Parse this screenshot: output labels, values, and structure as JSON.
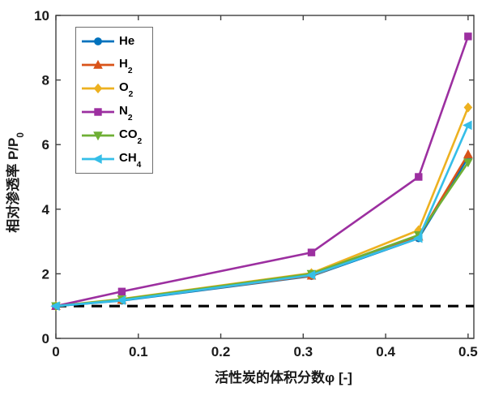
{
  "figure": {
    "background": "#ffffff",
    "axis_color": "#3f3f3f",
    "tick_label_color": "#1a1a1a"
  },
  "chart_data": {
    "type": "line",
    "x": [
      0,
      0.08,
      0.31,
      0.44,
      0.5
    ],
    "series": [
      {
        "name": "He",
        "sub": "",
        "color": "#0072BD",
        "marker": "circle",
        "values": [
          1.0,
          1.17,
          1.93,
          3.1,
          5.6
        ]
      },
      {
        "name": "H",
        "sub": "2",
        "color": "#D95319",
        "marker": "triangle-up",
        "values": [
          1.0,
          1.19,
          1.94,
          3.15,
          5.7
        ]
      },
      {
        "name": "O",
        "sub": "2",
        "color": "#EDB120",
        "marker": "diamond",
        "values": [
          1.0,
          1.22,
          2.02,
          3.35,
          7.15
        ]
      },
      {
        "name": "N",
        "sub": "2",
        "color": "#9C2FA0",
        "marker": "square",
        "values": [
          1.0,
          1.45,
          2.66,
          5.0,
          9.35
        ]
      },
      {
        "name": "CO",
        "sub": "2",
        "color": "#6FAF35",
        "marker": "triangle-down",
        "values": [
          1.0,
          1.21,
          2.0,
          3.2,
          5.45
        ]
      },
      {
        "name": "CH",
        "sub": "4",
        "color": "#35BEE8",
        "marker": "triangle-left",
        "values": [
          1.0,
          1.18,
          1.96,
          3.1,
          6.6
        ]
      }
    ],
    "reference_line": {
      "y": 1,
      "style": "dashed",
      "color": "#000000"
    },
    "title": "",
    "xlabel": "活性炭的体积分数φ [-]",
    "ylabel_main": "相对渗透率 P/P",
    "ylabel_sub": "0",
    "xlim": [
      0,
      0.507
    ],
    "ylim": [
      0,
      10
    ],
    "xticks": [
      "0",
      "0.1",
      "0.2",
      "0.3",
      "0.4",
      "0.5"
    ],
    "xtick_values": [
      0,
      0.1,
      0.2,
      0.3,
      0.4,
      0.5
    ],
    "yticks": [
      "0",
      "2",
      "4",
      "6",
      "8",
      "10"
    ],
    "ytick_values": [
      0,
      2,
      4,
      6,
      8,
      10
    ],
    "grid": false,
    "legend_position": "top-left"
  }
}
